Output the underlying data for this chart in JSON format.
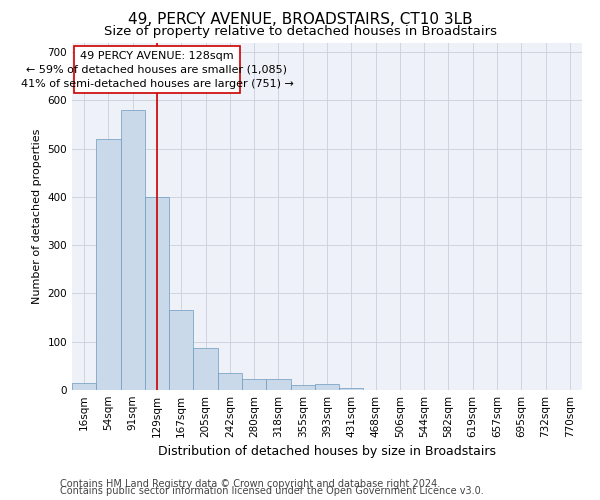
{
  "title": "49, PERCY AVENUE, BROADSTAIRS, CT10 3LB",
  "subtitle": "Size of property relative to detached houses in Broadstairs",
  "xlabel": "Distribution of detached houses by size in Broadstairs",
  "ylabel": "Number of detached properties",
  "bar_color": "#c9d9ea",
  "bar_edge_color": "#6a9abf",
  "grid_color": "#c8d0dc",
  "background_color": "#eef2f8",
  "bin_labels": [
    "16sqm",
    "54sqm",
    "91sqm",
    "129sqm",
    "167sqm",
    "205sqm",
    "242sqm",
    "280sqm",
    "318sqm",
    "355sqm",
    "393sqm",
    "431sqm",
    "468sqm",
    "506sqm",
    "544sqm",
    "582sqm",
    "619sqm",
    "657sqm",
    "695sqm",
    "732sqm",
    "770sqm"
  ],
  "bar_heights": [
    15,
    520,
    580,
    400,
    165,
    88,
    35,
    22,
    22,
    11,
    13,
    5,
    0,
    0,
    0,
    0,
    0,
    0,
    0,
    0,
    0
  ],
  "property_line_x": 3.0,
  "property_line_color": "#cc0000",
  "annotation_line1": "49 PERCY AVENUE: 128sqm",
  "annotation_line2": "← 59% of detached houses are smaller (1,085)",
  "annotation_line3": "41% of semi-detached houses are larger (751) →",
  "annotation_box_color": "#ffffff",
  "annotation_box_edge": "#cc0000",
  "ylim": [
    0,
    720
  ],
  "yticks": [
    0,
    100,
    200,
    300,
    400,
    500,
    600,
    700
  ],
  "footnote1": "Contains HM Land Registry data © Crown copyright and database right 2024.",
  "footnote2": "Contains public sector information licensed under the Open Government Licence v3.0.",
  "title_fontsize": 11,
  "subtitle_fontsize": 9.5,
  "tick_fontsize": 7.5,
  "xlabel_fontsize": 9,
  "ylabel_fontsize": 8,
  "annotation_fontsize": 8,
  "footnote_fontsize": 7
}
